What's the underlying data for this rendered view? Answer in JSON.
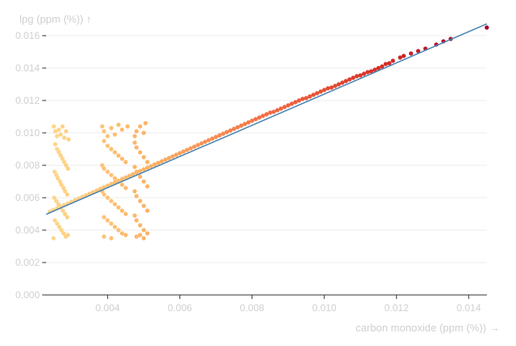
{
  "chart_data": {
    "type": "scatter",
    "xlabel": "carbon monoxide (ppm (%)) →",
    "ylabel": "lpg (ppm (%)) ↑",
    "xlim": [
      0.0023,
      0.0145
    ],
    "ylim": [
      0,
      0.0168
    ],
    "x_ticks": [
      "0.004",
      "0.006",
      "0.008",
      "0.010",
      "0.012",
      "0.014"
    ],
    "x_tick_values": [
      0.004,
      0.006,
      0.008,
      0.01,
      0.012,
      0.014
    ],
    "y_ticks": [
      "0.000",
      "0.002",
      "0.004",
      "0.006",
      "0.008",
      "0.010",
      "0.012",
      "0.014",
      "0.016"
    ],
    "y_tick_values": [
      0,
      0.002,
      0.004,
      0.006,
      0.008,
      0.01,
      0.012,
      0.014,
      0.016
    ],
    "grid": "horizontal",
    "color_scale": [
      "#fed98e",
      "#fdae61",
      "#f46d43",
      "#d73027",
      "#a50026"
    ],
    "trend_color": "#4682b4",
    "trend_line": {
      "x": [
        0.0023,
        0.0145
      ],
      "y": [
        0.00498,
        0.01673
      ]
    },
    "points": [
      [
        0.0145,
        0.0165
      ],
      [
        0.0135,
        0.0158
      ],
      [
        0.0133,
        0.01565
      ],
      [
        0.0131,
        0.01545
      ],
      [
        0.0128,
        0.0152
      ],
      [
        0.0126,
        0.01505
      ],
      [
        0.0124,
        0.0149
      ],
      [
        0.0122,
        0.01475
      ],
      [
        0.0121,
        0.01465
      ],
      [
        0.0119,
        0.01445
      ],
      [
        0.0118,
        0.0143
      ],
      [
        0.0117,
        0.01425
      ],
      [
        0.0116,
        0.0141
      ],
      [
        0.0115,
        0.014
      ],
      [
        0.0114,
        0.0139
      ],
      [
        0.0113,
        0.0138
      ],
      [
        0.0112,
        0.01375
      ],
      [
        0.0111,
        0.01365
      ],
      [
        0.011,
        0.01355
      ],
      [
        0.0109,
        0.0135
      ],
      [
        0.0108,
        0.0134
      ],
      [
        0.0107,
        0.0133
      ],
      [
        0.0106,
        0.0132
      ],
      [
        0.0105,
        0.0131
      ],
      [
        0.0104,
        0.013
      ],
      [
        0.0103,
        0.0129
      ],
      [
        0.0102,
        0.0128
      ],
      [
        0.0101,
        0.01275
      ],
      [
        0.01,
        0.01265
      ],
      [
        0.0099,
        0.01255
      ],
      [
        0.0098,
        0.01245
      ],
      [
        0.0097,
        0.01235
      ],
      [
        0.0096,
        0.01225
      ],
      [
        0.0095,
        0.01215
      ],
      [
        0.0094,
        0.0121
      ],
      [
        0.0093,
        0.012
      ],
      [
        0.0092,
        0.0119
      ],
      [
        0.0091,
        0.0118
      ],
      [
        0.009,
        0.0117
      ],
      [
        0.0089,
        0.0116
      ],
      [
        0.0088,
        0.0115
      ],
      [
        0.0087,
        0.0114
      ],
      [
        0.0086,
        0.0113
      ],
      [
        0.0085,
        0.01125
      ],
      [
        0.0084,
        0.01115
      ],
      [
        0.0083,
        0.01105
      ],
      [
        0.0082,
        0.01095
      ],
      [
        0.0081,
        0.01085
      ],
      [
        0.008,
        0.01075
      ],
      [
        0.0079,
        0.01065
      ],
      [
        0.0078,
        0.01055
      ],
      [
        0.0077,
        0.01045
      ],
      [
        0.0076,
        0.01035
      ],
      [
        0.0075,
        0.01025
      ],
      [
        0.0074,
        0.01015
      ],
      [
        0.0073,
        0.01005
      ],
      [
        0.0072,
        0.00995
      ],
      [
        0.0071,
        0.00985
      ],
      [
        0.007,
        0.00975
      ],
      [
        0.0069,
        0.00965
      ],
      [
        0.0068,
        0.00955
      ],
      [
        0.0067,
        0.00945
      ],
      [
        0.0066,
        0.00935
      ],
      [
        0.0065,
        0.00925
      ],
      [
        0.0064,
        0.00915
      ],
      [
        0.0063,
        0.00905
      ],
      [
        0.0062,
        0.00895
      ],
      [
        0.0061,
        0.00885
      ],
      [
        0.006,
        0.00875
      ],
      [
        0.0059,
        0.00865
      ],
      [
        0.0058,
        0.00855
      ],
      [
        0.0057,
        0.00845
      ],
      [
        0.0056,
        0.00835
      ],
      [
        0.0055,
        0.00825
      ],
      [
        0.0054,
        0.00815
      ],
      [
        0.0053,
        0.00805
      ],
      [
        0.0052,
        0.00795
      ],
      [
        0.0051,
        0.00785
      ],
      [
        0.005,
        0.00775
      ],
      [
        0.0049,
        0.00765
      ],
      [
        0.0048,
        0.00755
      ],
      [
        0.0047,
        0.00745
      ],
      [
        0.0046,
        0.00735
      ],
      [
        0.0045,
        0.00725
      ],
      [
        0.0044,
        0.00715
      ],
      [
        0.0043,
        0.00705
      ],
      [
        0.0042,
        0.00695
      ],
      [
        0.0041,
        0.00685
      ],
      [
        0.004,
        0.00675
      ],
      [
        0.0039,
        0.00665
      ],
      [
        0.0038,
        0.00655
      ],
      [
        0.0037,
        0.00645
      ],
      [
        0.0036,
        0.00635
      ],
      [
        0.0035,
        0.00625
      ],
      [
        0.0034,
        0.00615
      ],
      [
        0.0033,
        0.00605
      ],
      [
        0.0032,
        0.00595
      ],
      [
        0.0031,
        0.00585
      ],
      [
        0.003,
        0.00575
      ],
      [
        0.0029,
        0.00565
      ],
      [
        0.0028,
        0.00555
      ],
      [
        0.0027,
        0.00545
      ],
      [
        0.0026,
        0.00535
      ],
      [
        0.0025,
        0.00525
      ],
      [
        0.0024,
        0.00515
      ],
      [
        0.00251,
        0.0104
      ],
      [
        0.00255,
        0.0101
      ],
      [
        0.0026,
        0.0098
      ],
      [
        0.00265,
        0.0102
      ],
      [
        0.0027,
        0.0099
      ],
      [
        0.00275,
        0.0104
      ],
      [
        0.0028,
        0.0097
      ],
      [
        0.00285,
        0.0101
      ],
      [
        0.00292,
        0.0096
      ],
      [
        0.00255,
        0.0093
      ],
      [
        0.0026,
        0.009
      ],
      [
        0.00265,
        0.0088
      ],
      [
        0.0027,
        0.0086
      ],
      [
        0.00275,
        0.0084
      ],
      [
        0.0028,
        0.0082
      ],
      [
        0.00285,
        0.008
      ],
      [
        0.0029,
        0.0078
      ],
      [
        0.00253,
        0.0076
      ],
      [
        0.00258,
        0.0074
      ],
      [
        0.00262,
        0.0072
      ],
      [
        0.00268,
        0.007
      ],
      [
        0.00272,
        0.0068
      ],
      [
        0.00278,
        0.0066
      ],
      [
        0.00282,
        0.0064
      ],
      [
        0.00288,
        0.0062
      ],
      [
        0.00252,
        0.006
      ],
      [
        0.00258,
        0.0058
      ],
      [
        0.00264,
        0.0056
      ],
      [
        0.0027,
        0.0054
      ],
      [
        0.00276,
        0.0052
      ],
      [
        0.00282,
        0.005
      ],
      [
        0.00288,
        0.0048
      ],
      [
        0.00254,
        0.0046
      ],
      [
        0.0026,
        0.0044
      ],
      [
        0.00266,
        0.0042
      ],
      [
        0.00272,
        0.004
      ],
      [
        0.00278,
        0.0038
      ],
      [
        0.00284,
        0.0036
      ],
      [
        0.0025,
        0.0035
      ],
      [
        0.0029,
        0.0037
      ],
      [
        0.00385,
        0.0104
      ],
      [
        0.0039,
        0.0101
      ],
      [
        0.004,
        0.0098
      ],
      [
        0.0041,
        0.0103
      ],
      [
        0.0042,
        0.0099
      ],
      [
        0.0043,
        0.0105
      ],
      [
        0.0044,
        0.0102
      ],
      [
        0.00455,
        0.0104
      ],
      [
        0.0039,
        0.0095
      ],
      [
        0.004,
        0.0092
      ],
      [
        0.0041,
        0.009
      ],
      [
        0.0042,
        0.0088
      ],
      [
        0.0043,
        0.0086
      ],
      [
        0.0044,
        0.0084
      ],
      [
        0.0045,
        0.0082
      ],
      [
        0.00385,
        0.008
      ],
      [
        0.0039,
        0.0078
      ],
      [
        0.004,
        0.0076
      ],
      [
        0.0041,
        0.0074
      ],
      [
        0.0042,
        0.0072
      ],
      [
        0.0043,
        0.007
      ],
      [
        0.0044,
        0.0068
      ],
      [
        0.0045,
        0.0066
      ],
      [
        0.00385,
        0.0064
      ],
      [
        0.0039,
        0.0062
      ],
      [
        0.004,
        0.006
      ],
      [
        0.0041,
        0.0058
      ],
      [
        0.0042,
        0.0056
      ],
      [
        0.0043,
        0.0054
      ],
      [
        0.0044,
        0.0052
      ],
      [
        0.0045,
        0.005
      ],
      [
        0.0039,
        0.0048
      ],
      [
        0.004,
        0.0046
      ],
      [
        0.0041,
        0.0044
      ],
      [
        0.0042,
        0.0042
      ],
      [
        0.0043,
        0.004
      ],
      [
        0.0044,
        0.0038
      ],
      [
        0.0039,
        0.0036
      ],
      [
        0.0041,
        0.0035
      ],
      [
        0.0045,
        0.0037
      ],
      [
        0.00475,
        0.0098
      ],
      [
        0.0048,
        0.0101
      ],
      [
        0.0049,
        0.0104
      ],
      [
        0.005,
        0.01
      ],
      [
        0.00505,
        0.0106
      ],
      [
        0.00475,
        0.0094
      ],
      [
        0.0048,
        0.0091
      ],
      [
        0.0049,
        0.0088
      ],
      [
        0.005,
        0.0085
      ],
      [
        0.0051,
        0.0082
      ],
      [
        0.00475,
        0.0079
      ],
      [
        0.0048,
        0.0076
      ],
      [
        0.0049,
        0.0073
      ],
      [
        0.005,
        0.007
      ],
      [
        0.0051,
        0.0067
      ],
      [
        0.00475,
        0.0064
      ],
      [
        0.0048,
        0.0061
      ],
      [
        0.0049,
        0.0058
      ],
      [
        0.005,
        0.0055
      ],
      [
        0.0051,
        0.0052
      ],
      [
        0.00475,
        0.0049
      ],
      [
        0.0048,
        0.0046
      ],
      [
        0.0049,
        0.0043
      ],
      [
        0.005,
        0.004
      ],
      [
        0.0051,
        0.0038
      ],
      [
        0.0048,
        0.0036
      ],
      [
        0.005,
        0.0035
      ],
      [
        0.0049,
        0.0037
      ]
    ]
  }
}
